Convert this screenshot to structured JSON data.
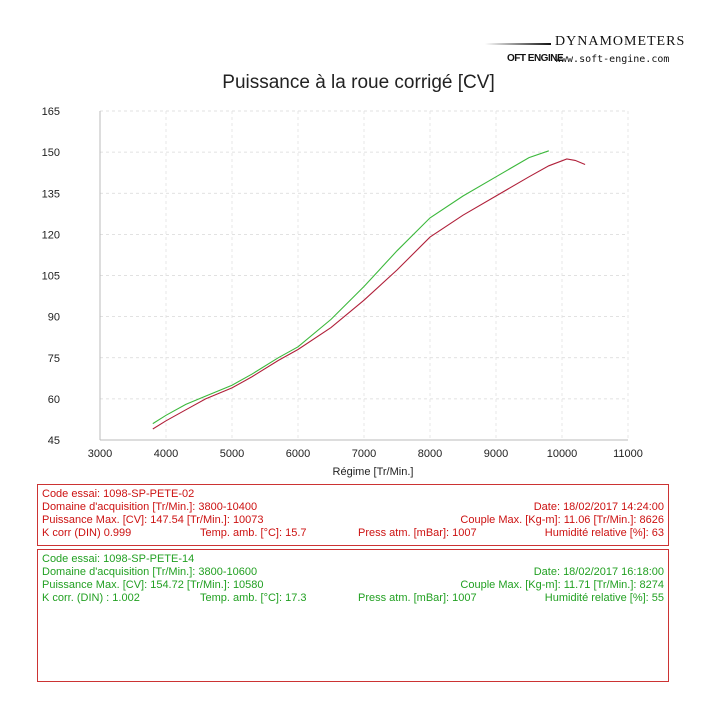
{
  "brand": {
    "name": "DYNAMOMETERS",
    "logo": "OFT ENGINE",
    "url": "www.soft-engine.com"
  },
  "chart_data": {
    "type": "line",
    "title": "Puissance à la roue corrigé [CV]",
    "xlabel": "Régime [Tr/Min.]",
    "ylabel": "",
    "xlim": [
      3000,
      11000
    ],
    "ylim": [
      45,
      165
    ],
    "xticks": [
      "3000",
      "4000",
      "5000",
      "6000",
      "7000",
      "8000",
      "9000",
      "10000",
      "11000"
    ],
    "yticks": [
      "45",
      "60",
      "75",
      "90",
      "105",
      "120",
      "135",
      "150",
      "165"
    ],
    "grid": true,
    "series": [
      {
        "color": "#b0203a",
        "x": [
          3800,
          4000,
          4300,
          4600,
          5000,
          5300,
          5700,
          6000,
          6500,
          7000,
          7500,
          8000,
          8500,
          9000,
          9500,
          9800,
          10073,
          10200,
          10350
        ],
        "y": [
          49,
          52,
          56,
          60,
          64,
          68,
          74,
          78,
          86,
          96,
          107,
          119,
          127,
          134,
          141,
          145,
          147.5,
          147,
          145.5
        ]
      },
      {
        "color": "#3cb83c",
        "x": [
          3800,
          4000,
          4300,
          4600,
          5000,
          5300,
          5700,
          6000,
          6500,
          7000,
          7500,
          8000,
          8500,
          9000,
          9500,
          9800
        ],
        "y": [
          51,
          54,
          58,
          61,
          65,
          69,
          75,
          79,
          89,
          101,
          114,
          126,
          134,
          141,
          148,
          150.5
        ]
      }
    ]
  },
  "panels": [
    {
      "color": "#cc1111",
      "code": "Code essai: 1098-SP-PETE-02",
      "domaine": "Domaine d'acquisition [Tr/Min.]: 3800-10400",
      "date": "Date: 18/02/2017   14:24:00",
      "puissance": "Puissance Max. [CV]: 147.54   [Tr/Min.]: 10073",
      "couple": "Couple Max. [Kg-m]: 11.06   [Tr/Min.]: 8626",
      "kcorr": "K corr  (DIN)   0.999",
      "temp": "Temp. amb. [°C]: 15.7",
      "press": "Press atm. [mBar]: 1007",
      "humid": "Humidité relative [%]: 63"
    },
    {
      "color": "#22a022",
      "code": "Code essai: 1098-SP-PETE-14",
      "domaine": "Domaine d'acquisition [Tr/Min.]: 3800-10600",
      "date": "Date: 18/02/2017   16:18:00",
      "puissance": "Puissance Max. [CV]: 154.72   [Tr/Min.]: 10580",
      "couple": "Couple Max. [Kg-m]: 11.71   [Tr/Min.]: 8274",
      "kcorr": "K corr. (DIN) : 1.002",
      "temp": "Temp. amb. [°C]: 17.3",
      "press": "Press atm. [mBar]: 1007",
      "humid": "Humidité relative [%]: 55"
    }
  ]
}
